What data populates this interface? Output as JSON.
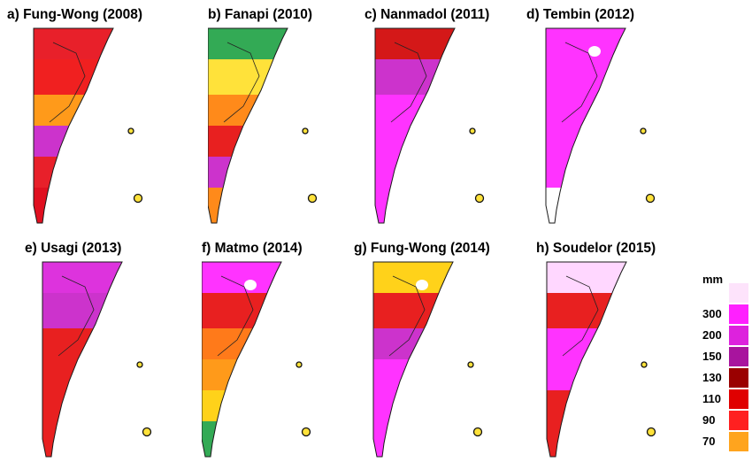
{
  "panels": [
    {
      "title": "a) Fung-Wong (2008)",
      "fill": [
        "#e8202a",
        "#f02020",
        "#ff9a1a",
        "#cc33cc",
        "#e8202a",
        "#e01020"
      ],
      "spots": []
    },
    {
      "title": "b) Fanapi (2010)",
      "fill": [
        "#33aa55",
        "#ffe23a",
        "#ff8a1a",
        "#e82020",
        "#cc33cc",
        "#ff8a1a"
      ],
      "spots": []
    },
    {
      "title": "c) Nanmadol (2011)",
      "fill": [
        "#d41818",
        "#cc33cc",
        "#ff33ff",
        "#ff33ff",
        "#ff33ff",
        "#ff33ff"
      ],
      "spots": []
    },
    {
      "title": "d) Tembin (2012)",
      "fill": [
        "#ff33ff",
        "#ff33ff",
        "#ff33ff",
        "#ff33ff",
        "#ff33ff",
        "#ffffff"
      ],
      "spots": [
        "#ffffff",
        "#ffffff"
      ]
    },
    {
      "title": "e) Usagi (2013)",
      "fill": [
        "#dd33dd",
        "#cc33cc",
        "#e82020",
        "#e82020",
        "#e82020",
        "#e82020"
      ],
      "spots": []
    },
    {
      "title": "f) Matmo (2014)",
      "fill": [
        "#ff33ff",
        "#e82020",
        "#ff7a1a",
        "#ff9a1a",
        "#ffd21a",
        "#33aa55"
      ],
      "spots": [
        "#ffffff"
      ]
    },
    {
      "title": "g) Fung-Wong (2014)",
      "fill": [
        "#ffd21a",
        "#e82020",
        "#cc33cc",
        "#ff33ff",
        "#ff33ff",
        "#ff33ff"
      ],
      "spots": [
        "#ffffff"
      ]
    },
    {
      "title": "h) Soudelor (2015)",
      "fill": [
        "#ffd7ff",
        "#e82020",
        "#ff33ff",
        "#ff33ff",
        "#e82020",
        "#e82020"
      ],
      "spots": []
    }
  ],
  "legend": {
    "unit": "mm",
    "items": [
      {
        "label": "",
        "color": "#fde3fb"
      },
      {
        "label": "300",
        "color": "#ff20ff"
      },
      {
        "label": "200",
        "color": "#dd22dd"
      },
      {
        "label": "150",
        "color": "#a8149e"
      },
      {
        "label": "130",
        "color": "#9a0000"
      },
      {
        "label": "110",
        "color": "#e00000"
      },
      {
        "label": "90",
        "color": "#ff2020"
      },
      {
        "label": "70",
        "color": "#ffa41e"
      }
    ]
  }
}
